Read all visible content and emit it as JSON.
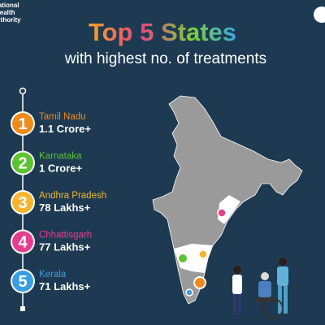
{
  "logo": {
    "lines": [
      "National",
      "Health",
      "Authority"
    ]
  },
  "header": {
    "title": "Top 5 States",
    "subtitle": "with highest no. of treatments"
  },
  "items": [
    {
      "rank": "1",
      "state": "Tamil Nadu",
      "value": "1.1 Crore+",
      "color": "#f08a1c"
    },
    {
      "rank": "2",
      "state": "Karnataka",
      "value": "1 Crore+",
      "color": "#5cc332"
    },
    {
      "rank": "3",
      "state": "Andhra Pradesh",
      "value": "78 Lakhs+",
      "color": "#f5b52e"
    },
    {
      "rank": "4",
      "state": "Chhattisgarh",
      "value": "77 Lakhs+",
      "color": "#e63e8f"
    },
    {
      "rank": "5",
      "state": "Kerala",
      "value": "71 Lakhs+",
      "color": "#3b9ee0"
    }
  ]
}
